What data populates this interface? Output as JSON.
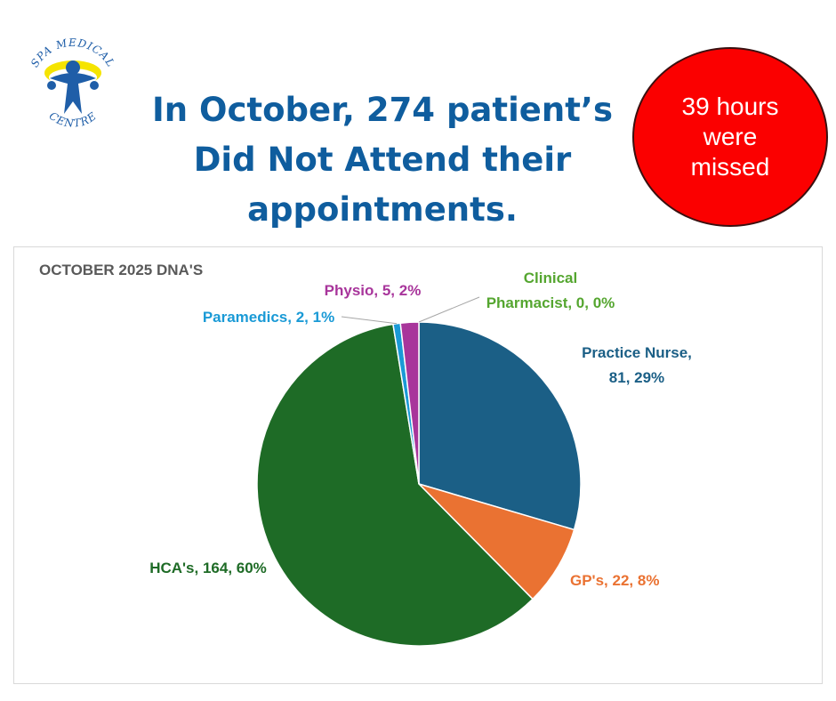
{
  "logo": {
    "text_top": "SPA MEDICAL",
    "text_bottom": "CENTRE"
  },
  "headline": {
    "line1": "In October, 274 patient’s",
    "line2": "Did Not Attend their",
    "line3": "appointments."
  },
  "badge": {
    "line1": "39 hours",
    "line2": "were",
    "line3": "missed",
    "color": "#fb0000"
  },
  "chart_data": {
    "type": "pie",
    "title": "OCTOBER 2025 DNA'S",
    "slices": [
      {
        "name": "Practice Nurse",
        "value": 81,
        "pct": "29%",
        "color": "#1b5f86",
        "label_line1": "Practice Nurse,",
        "label_line2": "81, 29%"
      },
      {
        "name": "GP's",
        "value": 22,
        "pct": "8%",
        "color": "#ea7232",
        "label_line1": "GP's, 22, 8%",
        "label_line2": ""
      },
      {
        "name": "HCA's",
        "value": 164,
        "pct": "60%",
        "color": "#1e6b26",
        "label_line1": "HCA's, 164, 60%",
        "label_line2": ""
      },
      {
        "name": "Paramedics",
        "value": 2,
        "pct": "1%",
        "color": "#1a9ad6",
        "label_line1": "Paramedics, 2, 1%",
        "label_line2": ""
      },
      {
        "name": "Physio",
        "value": 5,
        "pct": "2%",
        "color": "#a8359b",
        "label_line1": "Physio, 5, 2%",
        "label_line2": ""
      },
      {
        "name": "Clinical Pharmacist",
        "value": 0,
        "pct": "0%",
        "color": "#55a630",
        "label_line1": "Clinical",
        "label_line2": "Pharmacist, 0, 0%"
      }
    ]
  }
}
